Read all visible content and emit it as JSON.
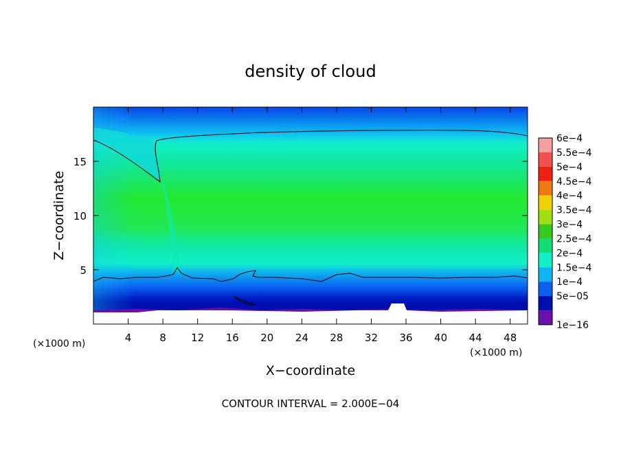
{
  "chart_data": {
    "type": "heatmap",
    "title": "density of cloud",
    "xlabel": "X−coordinate",
    "ylabel": "Z−coordinate",
    "x_unit_left": "(×1000 m)",
    "x_unit_right": "(×1000 m)",
    "x_ticks": [
      4,
      8,
      12,
      16,
      20,
      24,
      28,
      32,
      36,
      40,
      44,
      48
    ],
    "y_ticks": [
      5,
      10,
      15
    ],
    "xlim": [
      0,
      50
    ],
    "ylim": [
      0,
      20
    ],
    "footer": "CONTOUR INTERVAL = 2.000E−04",
    "colorbar": {
      "labels": [
        "6e−4",
        "5.5e−4",
        "5e−4",
        "4.5e−4",
        "4e−4",
        "3.5e−4",
        "3e−4",
        "2.5e−4",
        "2e−4",
        "1.5e−4",
        "1e−4",
        "5e−05",
        "1e−16"
      ],
      "colors": [
        "#f4a0a0",
        "#f45050",
        "#f02010",
        "#f07810",
        "#f0d000",
        "#a0e010",
        "#38c820",
        "#10dc78",
        "#10f0c8",
        "#10b4f0",
        "#0a60f0",
        "#0010b0",
        "#6a10a8"
      ]
    },
    "contour_levels": [
      0.0002
    ],
    "field_levels": {
      "ground": "1e−16",
      "near_surface": "5e−05",
      "boundary": "1.5e−4",
      "contour": "2e−4",
      "interior": "3e−4",
      "top": "1e−4"
    }
  }
}
